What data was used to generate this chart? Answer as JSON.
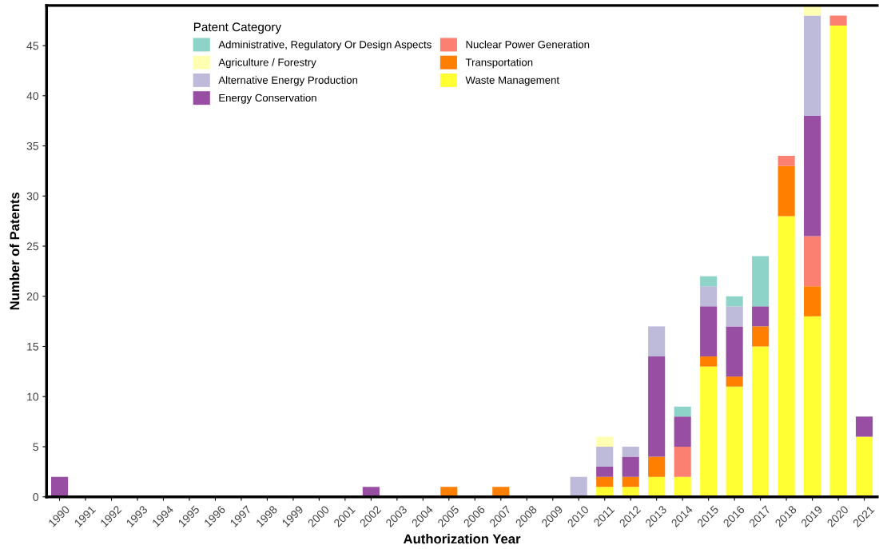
{
  "chart_data": {
    "type": "bar",
    "stacked": true,
    "xlabel": "Authorization Year",
    "ylabel": "Number of Patents",
    "legend_title": "Patent Category",
    "legend": "top left",
    "grid": false,
    "categories": [
      "1990",
      "1991",
      "1992",
      "1993",
      "1994",
      "1995",
      "1996",
      "1997",
      "1998",
      "1999",
      "2000",
      "2001",
      "2002",
      "2003",
      "2004",
      "2005",
      "2006",
      "2007",
      "2008",
      "2009",
      "2010",
      "2011",
      "2012",
      "2013",
      "2014",
      "2015",
      "2016",
      "2017",
      "2018",
      "2019",
      "2020",
      "2021"
    ],
    "ylim": [
      0,
      49
    ],
    "yticks": [
      0,
      5,
      10,
      15,
      20,
      25,
      30,
      35,
      40,
      45
    ],
    "series": [
      {
        "name": "Waste Management",
        "color": "#ffff33",
        "values": [
          0,
          0,
          0,
          0,
          0,
          0,
          0,
          0,
          0,
          0,
          0,
          0,
          0,
          0,
          0,
          0,
          0,
          0,
          0,
          0,
          0,
          1,
          1,
          2,
          2,
          13,
          11,
          15,
          28,
          18,
          47,
          6
        ]
      },
      {
        "name": "Transportation",
        "color": "#ff7f00",
        "values": [
          0,
          0,
          0,
          0,
          0,
          0,
          0,
          0,
          0,
          0,
          0,
          0,
          0,
          0,
          0,
          1,
          0,
          1,
          0,
          0,
          0,
          1,
          1,
          2,
          0,
          1,
          1,
          2,
          5,
          3,
          0,
          0
        ]
      },
      {
        "name": "Nuclear Power Generation",
        "color": "#fb8072",
        "values": [
          0,
          0,
          0,
          0,
          0,
          0,
          0,
          0,
          0,
          0,
          0,
          0,
          0,
          0,
          0,
          0,
          0,
          0,
          0,
          0,
          0,
          0,
          0,
          0,
          3,
          0,
          0,
          0,
          1,
          5,
          1,
          0
        ]
      },
      {
        "name": "Energy Conservation",
        "color": "#984ea3",
        "values": [
          2,
          0,
          0,
          0,
          0,
          0,
          0,
          0,
          0,
          0,
          0,
          0,
          1,
          0,
          0,
          0,
          0,
          0,
          0,
          0,
          0,
          1,
          2,
          10,
          3,
          5,
          5,
          2,
          0,
          12,
          0,
          2
        ]
      },
      {
        "name": "Alternative Energy Production",
        "color": "#bebada",
        "values": [
          0,
          0,
          0,
          0,
          0,
          0,
          0,
          0,
          0,
          0,
          0,
          0,
          0,
          0,
          0,
          0,
          0,
          0,
          0,
          0,
          2,
          2,
          1,
          3,
          0,
          2,
          2,
          0,
          0,
          10,
          0,
          0
        ]
      },
      {
        "name": "Agriculture / Forestry",
        "color": "#ffffb3",
        "values": [
          0,
          0,
          0,
          0,
          0,
          0,
          0,
          0,
          0,
          0,
          0,
          0,
          0,
          0,
          0,
          0,
          0,
          0,
          0,
          0,
          0,
          1,
          0,
          0,
          0,
          0,
          0,
          0,
          0,
          1,
          0,
          0
        ]
      },
      {
        "name": "Administrative, Regulatory Or Design Aspects",
        "color": "#8dd3c7",
        "values": [
          0,
          0,
          0,
          0,
          0,
          0,
          0,
          0,
          0,
          0,
          0,
          0,
          0,
          0,
          0,
          0,
          0,
          0,
          0,
          0,
          0,
          0,
          0,
          0,
          1,
          1,
          1,
          5,
          0,
          0,
          0,
          0
        ]
      }
    ]
  }
}
